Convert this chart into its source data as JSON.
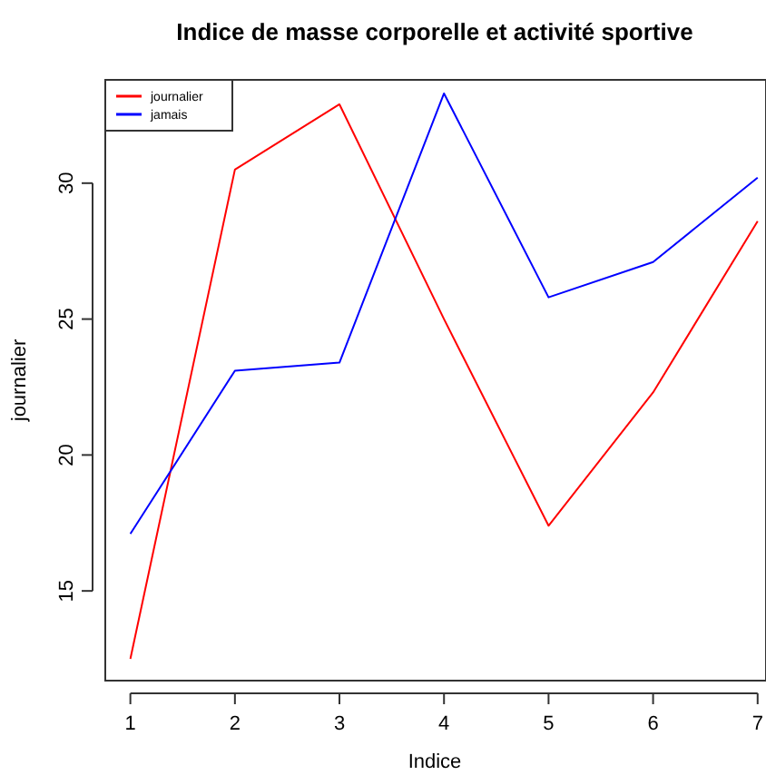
{
  "chart_data": {
    "type": "line",
    "title": "Indice de masse corporelle et activité sportive",
    "xlabel": "Indice",
    "ylabel": "journalier",
    "x": [
      1,
      2,
      3,
      4,
      5,
      6,
      7
    ],
    "xlim": [
      0.76,
      7.08
    ],
    "xticks": [
      1,
      2,
      3,
      4,
      5,
      6,
      7
    ],
    "ylim": [
      11.7,
      33.8
    ],
    "yticks": [
      15,
      20,
      25,
      30
    ],
    "series": [
      {
        "name": "journalier",
        "color": "#ff0000",
        "values": [
          12.5,
          30.5,
          32.9,
          25.0,
          17.4,
          22.3,
          28.6
        ]
      },
      {
        "name": "jamais",
        "color": "#0000ff",
        "values": [
          17.1,
          23.1,
          23.4,
          33.3,
          25.8,
          27.1,
          30.2
        ]
      }
    ],
    "legend": "top left",
    "grid": false,
    "marker": "none",
    "line_style": "solid"
  }
}
